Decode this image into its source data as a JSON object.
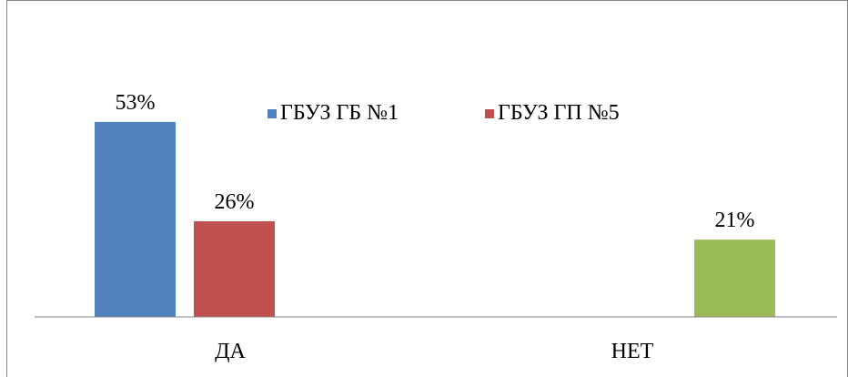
{
  "chart_data": {
    "type": "bar",
    "categories": [
      "ДА",
      "НЕТ"
    ],
    "series": [
      {
        "name": "ГБУЗ ГБ №1",
        "values": [
          53,
          null
        ],
        "labels": [
          "53%",
          ""
        ],
        "color": "#4f81bd"
      },
      {
        "name": "ГБУЗ ГП №5",
        "values": [
          26,
          null
        ],
        "labels": [
          "26%",
          ""
        ],
        "color": "#c0504d"
      },
      {
        "name": "",
        "values": [
          null,
          21
        ],
        "labels": [
          "",
          "21%"
        ],
        "color": "#9bbb59"
      }
    ],
    "title": "",
    "xlabel": "",
    "ylabel": "",
    "ylim": [
      0,
      60
    ],
    "grid": false,
    "legend_position": "top-center",
    "value_format": "percent"
  }
}
